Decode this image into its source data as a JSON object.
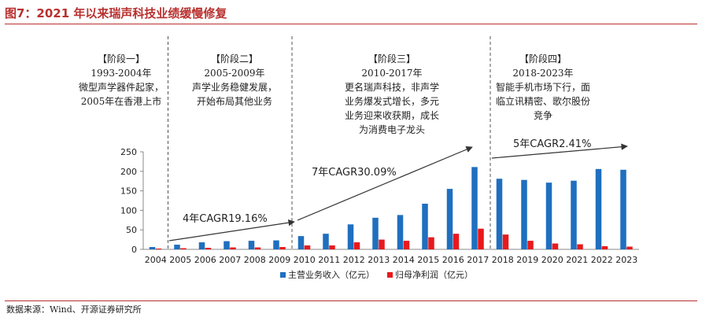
{
  "figure": {
    "title": "图7：2021 年以来瑞声科技业绩缓慢修复",
    "source": "数据来源：Wind、开源证券研究所"
  },
  "phases": [
    {
      "title": "【阶段一】",
      "lines": [
        "1993-2004年",
        "微型声学器件起家，",
        "2005年在香港上市"
      ]
    },
    {
      "title": "【阶段二】",
      "lines": [
        "2005-2009年",
        "声学业务稳健发展，",
        "开始布局其他业务"
      ]
    },
    {
      "title": "【阶段三】",
      "lines": [
        "2010-2017年",
        "更名瑞声科技，非声学",
        "业务爆发式增长，多元",
        "业务迎来收获期，成长",
        "为消费电子龙头"
      ]
    },
    {
      "title": "【阶段四】",
      "lines": [
        "2018-2023年",
        "智能手机市场下行，面",
        "临立讯精密、歌尔股份",
        "竞争"
      ]
    }
  ],
  "chart_data": {
    "type": "bar",
    "categories": [
      "2004",
      "2005",
      "2006",
      "2007",
      "2008",
      "2009",
      "2010",
      "2011",
      "2012",
      "2013",
      "2014",
      "2015",
      "2016",
      "2017",
      "2018",
      "2019",
      "2020",
      "2021",
      "2022",
      "2023"
    ],
    "series": [
      {
        "name": "主营业务收入（亿元）",
        "color": "#1f6fbf",
        "values": [
          6,
          12,
          18,
          21,
          22,
          23,
          34,
          40,
          64,
          81,
          88,
          117,
          155,
          211,
          181,
          178,
          171,
          176,
          206,
          204
        ]
      },
      {
        "name": "归母净利润（亿元）",
        "color": "#e8191c",
        "values": [
          2,
          3,
          4,
          5,
          5,
          6,
          10,
          10,
          18,
          25,
          22,
          31,
          40,
          53,
          38,
          22,
          15,
          13,
          8,
          7
        ]
      }
    ],
    "ylim": [
      0,
      250
    ],
    "yticks": [
      0,
      50,
      100,
      150,
      200,
      250
    ],
    "grid": false,
    "legend_position": "bottom",
    "annotations": [
      {
        "text": "4年CAGR19.16%",
        "from": "2005",
        "to": "2009"
      },
      {
        "text": "7年CAGR30.09%",
        "from": "2010",
        "to": "2017"
      },
      {
        "text": "5年CAGR2.41%",
        "from": "2018",
        "to": "2023"
      }
    ]
  }
}
